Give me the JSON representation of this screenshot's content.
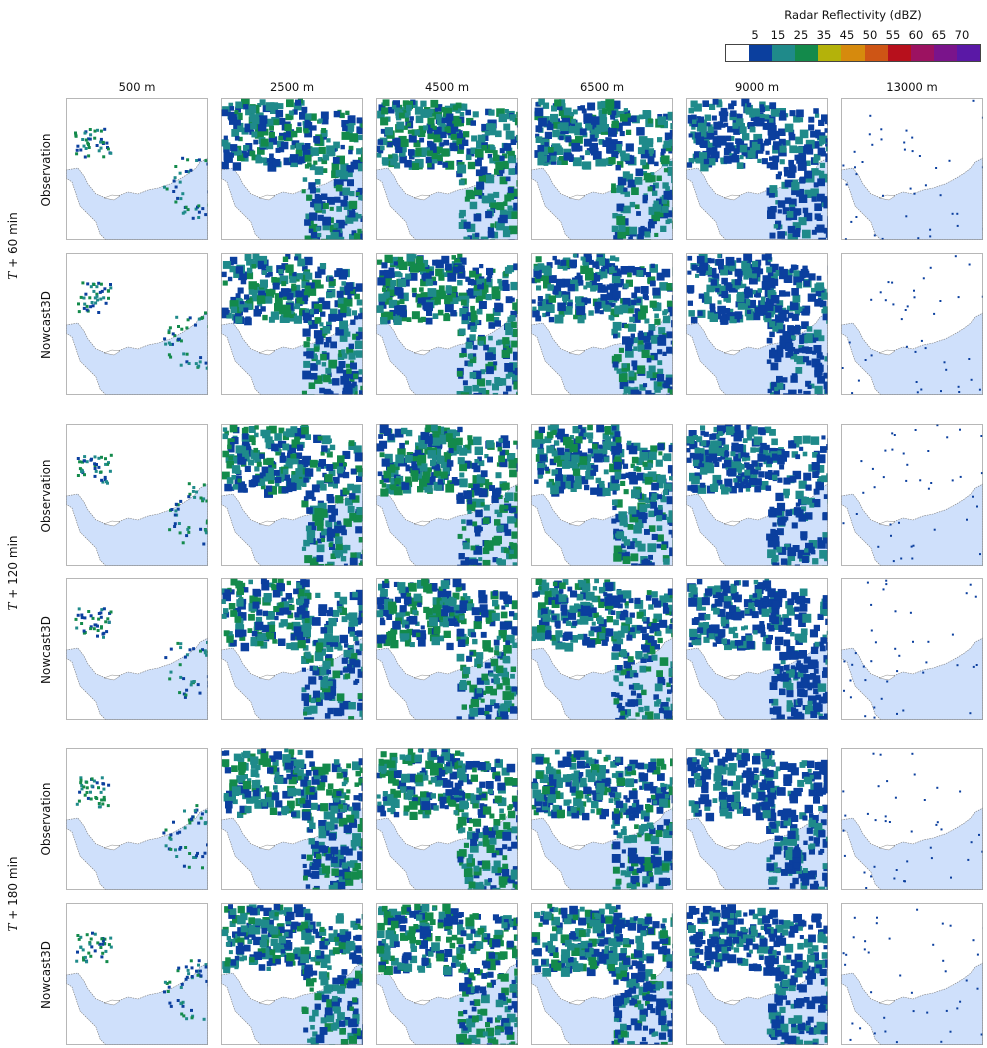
{
  "legend": {
    "title": "Radar Reflectivity (dBZ)",
    "ticks": [
      "5",
      "15",
      "25",
      "35",
      "45",
      "50",
      "55",
      "60",
      "65",
      "70"
    ],
    "colors": [
      "#ffffff",
      "#0b3f9e",
      "#1f8a8a",
      "#138a4b",
      "#b4b20a",
      "#d68a0d",
      "#ce5515",
      "#b7101c",
      "#9c1261",
      "#7a148b",
      "#5a18a6"
    ]
  },
  "columns": [
    "500 m",
    "2500 m",
    "4500 m",
    "6500 m",
    "9000 m",
    "13000 m"
  ],
  "groups": [
    {
      "time_prefix": "T",
      "time_suffix": " + 60 min",
      "rows": [
        "Observation",
        "Nowcast3D"
      ]
    },
    {
      "time_prefix": "T",
      "time_suffix": " + 120 min",
      "rows": [
        "Observation",
        "Nowcast3D"
      ]
    },
    {
      "time_prefix": "T",
      "time_suffix": " + 180 min",
      "rows": [
        "Observation",
        "Nowcast3D"
      ]
    }
  ],
  "panel_colors": {
    "sea": "#cfe0fb",
    "land": "#ffffff",
    "coast": "#777777"
  }
}
